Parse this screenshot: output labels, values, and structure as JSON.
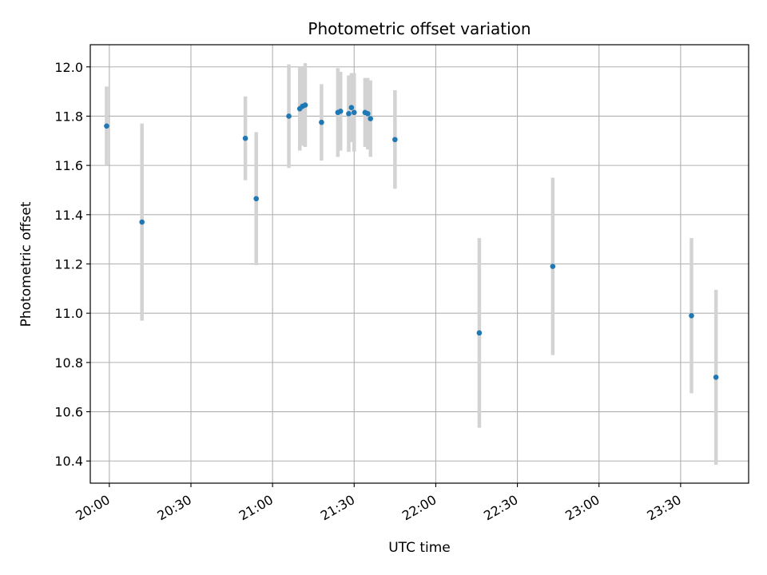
{
  "chart_data": {
    "type": "scatter",
    "title": "Photometric offset variation",
    "xlabel": "UTC time",
    "ylabel": "Photometric offset",
    "x_tick_labels": [
      "20:00",
      "20:30",
      "21:00",
      "21:30",
      "22:00",
      "22:30",
      "23:00",
      "23:30"
    ],
    "x_ticks": [
      "20:00",
      "20:30",
      "21:00",
      "21:30",
      "22:00",
      "22:30",
      "23:00",
      "23:30"
    ],
    "y_ticks": [
      10.4,
      10.6,
      10.8,
      11.0,
      11.2,
      11.4,
      11.6,
      11.8,
      12.0
    ],
    "y_tick_labels": [
      "10.4",
      "10.6",
      "10.8",
      "11.0",
      "11.2",
      "11.4",
      "11.6",
      "11.8",
      "12.0"
    ],
    "xlim": [
      "19:53",
      "23:55"
    ],
    "ylim": [
      10.31,
      12.09
    ],
    "grid": true,
    "marker_color": "#1f77b4",
    "errorbar_color": "#d3d3d3",
    "series": [
      {
        "points": [
          {
            "x": "19:59",
            "y": 11.76,
            "err": 0.16
          },
          {
            "x": "20:12",
            "y": 11.37,
            "err": 0.4
          },
          {
            "x": "20:50",
            "y": 11.71,
            "err": 0.17
          },
          {
            "x": "20:54",
            "y": 11.465,
            "err": 0.27
          },
          {
            "x": "21:06",
            "y": 11.8,
            "err": 0.21
          },
          {
            "x": "21:10",
            "y": 11.83,
            "err": 0.17
          },
          {
            "x": "21:11",
            "y": 11.84,
            "err": 0.16
          },
          {
            "x": "21:12",
            "y": 11.845,
            "err": 0.17
          },
          {
            "x": "21:18",
            "y": 11.775,
            "err": 0.155
          },
          {
            "x": "21:24",
            "y": 11.815,
            "err": 0.18
          },
          {
            "x": "21:25",
            "y": 11.82,
            "err": 0.16
          },
          {
            "x": "21:28",
            "y": 11.81,
            "err": 0.155
          },
          {
            "x": "21:29",
            "y": 11.835,
            "err": 0.14
          },
          {
            "x": "21:30",
            "y": 11.815,
            "err": 0.16
          },
          {
            "x": "21:34",
            "y": 11.815,
            "err": 0.14
          },
          {
            "x": "21:35",
            "y": 11.81,
            "err": 0.145
          },
          {
            "x": "21:36",
            "y": 11.79,
            "err": 0.155
          },
          {
            "x": "21:45",
            "y": 11.705,
            "err": 0.2
          },
          {
            "x": "22:16",
            "y": 10.92,
            "err": 0.385
          },
          {
            "x": "22:43",
            "y": 11.19,
            "err": 0.36
          },
          {
            "x": "23:34",
            "y": 10.99,
            "err": 0.315
          },
          {
            "x": "23:43",
            "y": 10.74,
            "err": 0.355
          }
        ]
      }
    ]
  }
}
